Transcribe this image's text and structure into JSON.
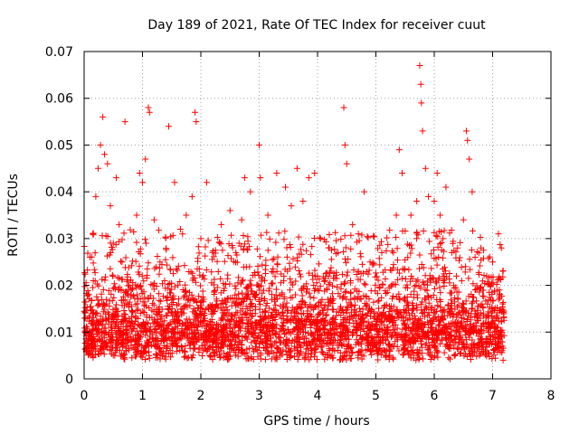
{
  "chart_data": {
    "type": "scatter",
    "title": "Day 189 of 2021, Rate Of TEC Index for receiver cuut",
    "xlabel": "GPS time / hours",
    "ylabel": "ROTI / TECUs",
    "xlim": [
      0,
      8
    ],
    "ylim": [
      0,
      0.07
    ],
    "x_ticks": [
      "0",
      "1",
      "2",
      "3",
      "4",
      "5",
      "6",
      "7",
      "8"
    ],
    "y_ticks": [
      "0",
      "0.01",
      "0.02",
      "0.03",
      "0.04",
      "0.05",
      "0.06",
      "0.07"
    ],
    "grid": true,
    "marker": "plus",
    "color": "#ff0000",
    "series": [
      {
        "name": "ROTI",
        "x_range": [
          0.0,
          7.2
        ],
        "bulk_range": [
          0.004,
          0.025
        ],
        "points": [
          [
            0.02,
            0.013
          ],
          [
            0.05,
            0.008
          ],
          [
            0.08,
            0.018
          ],
          [
            0.1,
            0.026
          ],
          [
            0.15,
            0.031
          ],
          [
            0.2,
            0.039
          ],
          [
            0.24,
            0.045
          ],
          [
            0.28,
            0.05
          ],
          [
            0.32,
            0.056
          ],
          [
            0.35,
            0.048
          ],
          [
            0.4,
            0.046
          ],
          [
            0.45,
            0.037
          ],
          [
            0.5,
            0.029
          ],
          [
            0.55,
            0.043
          ],
          [
            0.6,
            0.033
          ],
          [
            0.65,
            0.025
          ],
          [
            0.7,
            0.055
          ],
          [
            0.8,
            0.018
          ],
          [
            0.9,
            0.035
          ],
          [
            0.95,
            0.044
          ],
          [
            1.0,
            0.042
          ],
          [
            1.05,
            0.047
          ],
          [
            1.1,
            0.058
          ],
          [
            1.12,
            0.057
          ],
          [
            1.2,
            0.034
          ],
          [
            1.3,
            0.025
          ],
          [
            1.45,
            0.054
          ],
          [
            1.55,
            0.042
          ],
          [
            1.65,
            0.032
          ],
          [
            1.75,
            0.035
          ],
          [
            1.85,
            0.039
          ],
          [
            1.9,
            0.057
          ],
          [
            1.92,
            0.055
          ],
          [
            2.0,
            0.03
          ],
          [
            2.1,
            0.042
          ],
          [
            2.2,
            0.027
          ],
          [
            2.35,
            0.033
          ],
          [
            2.5,
            0.036
          ],
          [
            2.6,
            0.027
          ],
          [
            2.7,
            0.034
          ],
          [
            2.75,
            0.043
          ],
          [
            2.85,
            0.04
          ],
          [
            3.0,
            0.05
          ],
          [
            3.02,
            0.043
          ],
          [
            3.15,
            0.035
          ],
          [
            3.3,
            0.044
          ],
          [
            3.45,
            0.041
          ],
          [
            3.55,
            0.037
          ],
          [
            3.65,
            0.045
          ],
          [
            3.75,
            0.038
          ],
          [
            3.85,
            0.043
          ],
          [
            3.95,
            0.044
          ],
          [
            4.05,
            0.03
          ],
          [
            4.2,
            0.028
          ],
          [
            4.35,
            0.027
          ],
          [
            4.45,
            0.058
          ],
          [
            4.47,
            0.05
          ],
          [
            4.5,
            0.046
          ],
          [
            4.6,
            0.033
          ],
          [
            4.7,
            0.031
          ],
          [
            4.8,
            0.04
          ],
          [
            4.9,
            0.025
          ],
          [
            5.1,
            0.027
          ],
          [
            5.3,
            0.027
          ],
          [
            5.35,
            0.035
          ],
          [
            5.4,
            0.049
          ],
          [
            5.45,
            0.044
          ],
          [
            5.6,
            0.035
          ],
          [
            5.7,
            0.038
          ],
          [
            5.75,
            0.067
          ],
          [
            5.77,
            0.063
          ],
          [
            5.78,
            0.059
          ],
          [
            5.8,
            0.053
          ],
          [
            5.85,
            0.045
          ],
          [
            5.9,
            0.039
          ],
          [
            6.0,
            0.038
          ],
          [
            6.05,
            0.044
          ],
          [
            6.1,
            0.035
          ],
          [
            6.15,
            0.03
          ],
          [
            6.2,
            0.041
          ],
          [
            6.3,
            0.027
          ],
          [
            6.4,
            0.028
          ],
          [
            6.5,
            0.034
          ],
          [
            6.55,
            0.053
          ],
          [
            6.57,
            0.051
          ],
          [
            6.6,
            0.047
          ],
          [
            6.65,
            0.04
          ],
          [
            6.7,
            0.026
          ],
          [
            6.8,
            0.028
          ],
          [
            6.9,
            0.022
          ],
          [
            7.0,
            0.025
          ],
          [
            7.1,
            0.031
          ],
          [
            7.15,
            0.028
          ],
          [
            7.18,
            0.004
          ]
        ]
      }
    ]
  }
}
